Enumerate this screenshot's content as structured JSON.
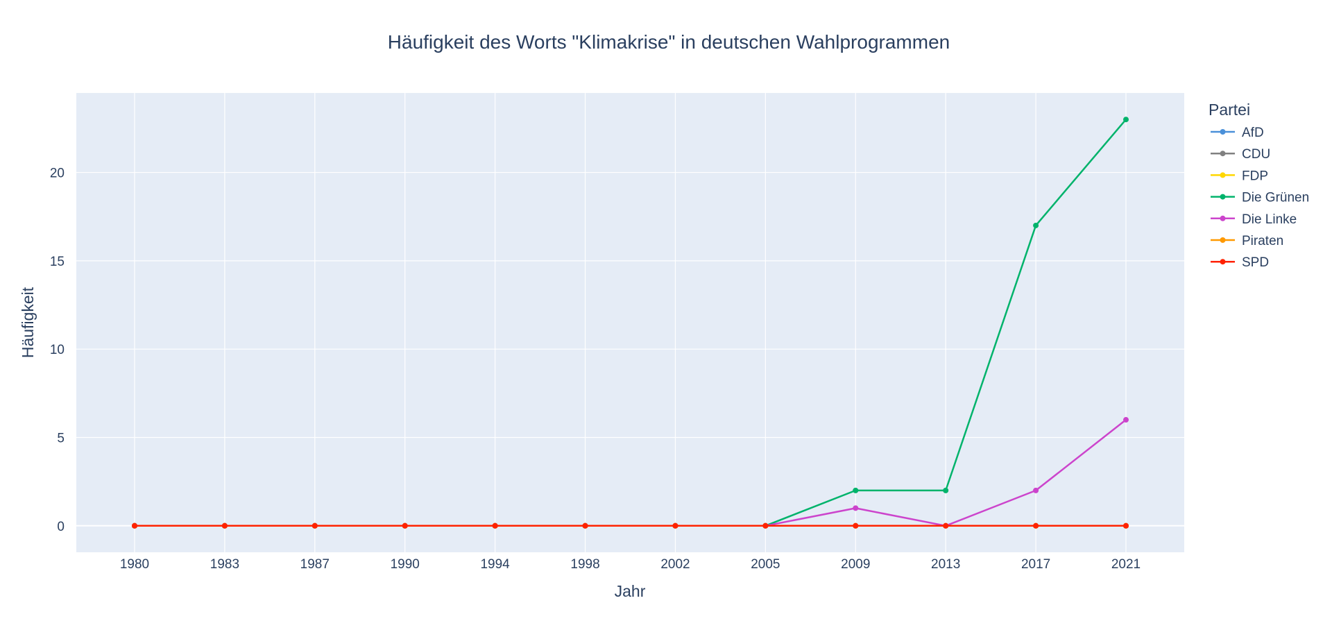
{
  "chart_data": {
    "type": "line",
    "title": "Häufigkeit des Worts \"Klimakrise\" in deutschen Wahlprogrammen",
    "xlabel": "Jahr",
    "ylabel": "Häufigkeit",
    "x": [
      "1980",
      "1983",
      "1987",
      "1990",
      "1994",
      "1998",
      "2002",
      "2005",
      "2009",
      "2013",
      "2017",
      "2021"
    ],
    "ylim": [
      -1.5,
      24.5
    ],
    "yticks": [
      0,
      5,
      10,
      15,
      20
    ],
    "grid": true,
    "legend": {
      "title": "Partei",
      "placement": "right"
    },
    "series": [
      {
        "name": "AfD",
        "color": "#4a90d9",
        "values": [
          0,
          0,
          0,
          0,
          0,
          0,
          0,
          0,
          0,
          0,
          0,
          0
        ]
      },
      {
        "name": "CDU",
        "color": "#808080",
        "values": [
          0,
          0,
          0,
          0,
          0,
          0,
          0,
          0,
          0,
          0,
          0,
          0
        ]
      },
      {
        "name": "FDP",
        "color": "#ffd700",
        "values": [
          0,
          0,
          0,
          0,
          0,
          0,
          0,
          0,
          0,
          0,
          0,
          0
        ]
      },
      {
        "name": "Die Grünen",
        "color": "#00b36b",
        "values": [
          0,
          0,
          0,
          0,
          0,
          0,
          0,
          0,
          2,
          2,
          17,
          23
        ]
      },
      {
        "name": "Die Linke",
        "color": "#cc44cc",
        "values": [
          0,
          0,
          0,
          0,
          0,
          0,
          0,
          0,
          1,
          0,
          2,
          6
        ]
      },
      {
        "name": "Piraten",
        "color": "#ff9900",
        "values": [
          0,
          0,
          0,
          0,
          0,
          0,
          0,
          0,
          0,
          0,
          0,
          0
        ]
      },
      {
        "name": "SPD",
        "color": "#ff2200",
        "values": [
          0,
          0,
          0,
          0,
          0,
          0,
          0,
          0,
          0,
          0,
          0,
          0
        ]
      }
    ]
  },
  "style": {
    "plot_background": "#e5ecf6",
    "grid_color": "#ffffff",
    "text_color": "#2a3f5f"
  }
}
